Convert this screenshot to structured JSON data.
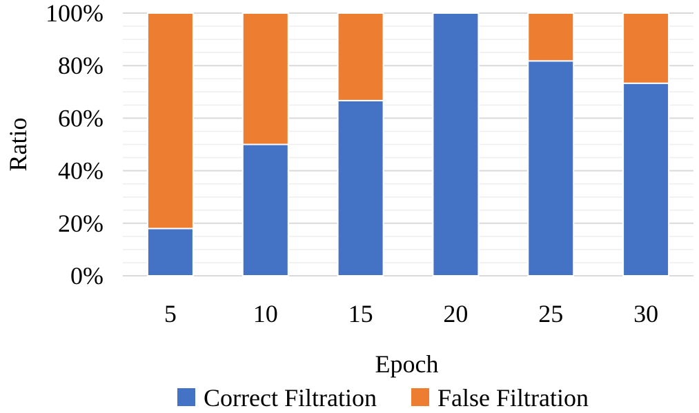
{
  "chart_data": {
    "type": "bar",
    "stacked": true,
    "categories": [
      "5",
      "10",
      "15",
      "20",
      "25",
      "30"
    ],
    "series": [
      {
        "name": "Correct Filtration",
        "values": [
          18,
          50,
          66.7,
          100,
          81.8,
          73.3
        ],
        "color": "#4472C4"
      },
      {
        "name": "False Filtration",
        "values": [
          82,
          50,
          33.3,
          0,
          18.2,
          26.7
        ],
        "color": "#ED7D31"
      }
    ],
    "title": "",
    "xlabel": "Epoch",
    "ylabel": "Ratio",
    "ylim": [
      0,
      100
    ],
    "y_ticks": [
      "0%",
      "20%",
      "40%",
      "60%",
      "80%",
      "100%"
    ],
    "grid": true,
    "legend_position": "bottom"
  }
}
